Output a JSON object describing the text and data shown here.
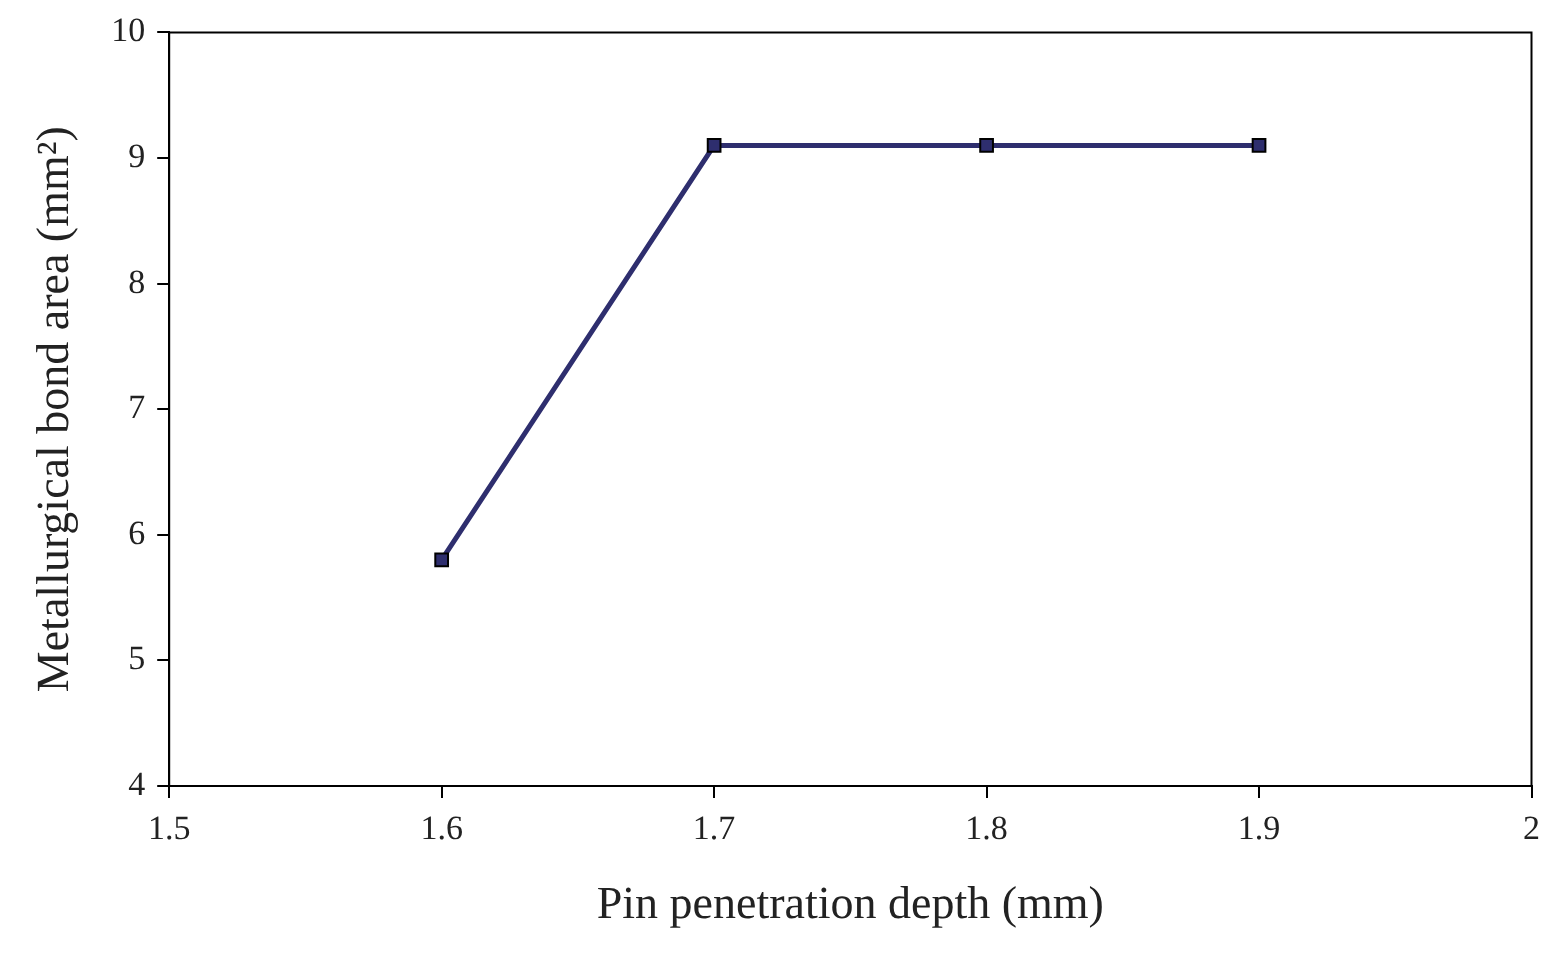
{
  "chart_data": {
    "type": "line",
    "xlabel": "Pin penetration depth (mm)",
    "ylabel": "Metallurgical bond area (mm²)",
    "x": [
      1.6,
      1.7,
      1.8,
      1.9
    ],
    "series": [
      {
        "color": "#2e2e6e",
        "values": [
          5.8,
          9.1,
          9.1,
          9.1
        ]
      }
    ],
    "xlim": [
      1.5,
      2
    ],
    "xticks": [
      1.5,
      1.6,
      1.7,
      1.8,
      1.9,
      2
    ],
    "ylim": [
      4,
      10
    ],
    "yticks": [
      4,
      5,
      6,
      7,
      8,
      9,
      10
    ],
    "grid": false,
    "legend": false,
    "marker": "square",
    "line_style": "solid"
  }
}
